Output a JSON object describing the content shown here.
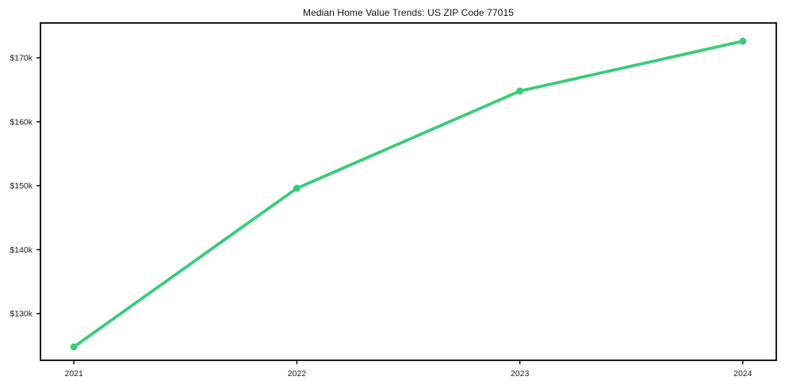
{
  "page": {
    "background": "#ffffff"
  },
  "chart_data": {
    "type": "line",
    "title": "Median Home Value Trends: US ZIP Code 77015",
    "xlabel": "",
    "ylabel": "",
    "categories": [
      2021,
      2022,
      2023,
      2024
    ],
    "x_tick_labels": [
      "2021",
      "2022",
      "2023",
      "2024"
    ],
    "values": [
      124800,
      149600,
      164800,
      172600
    ],
    "y_ticks": [
      {
        "label": "$130k",
        "value": 130000
      },
      {
        "label": "$140k",
        "value": 140000
      },
      {
        "label": "$150k",
        "value": 150000
      },
      {
        "label": "$160k",
        "value": 160000
      },
      {
        "label": "$170k",
        "value": 170000
      }
    ],
    "xlim": [
      2020.85,
      2024.15
    ],
    "ylim": [
      122700,
      175450
    ],
    "grid": false,
    "legend": "none",
    "marker": "circle",
    "line_color": "#3ccb7a",
    "axis_color": "#000000",
    "text_color": "#1a1a1a",
    "plot_background": "#ffffff"
  }
}
